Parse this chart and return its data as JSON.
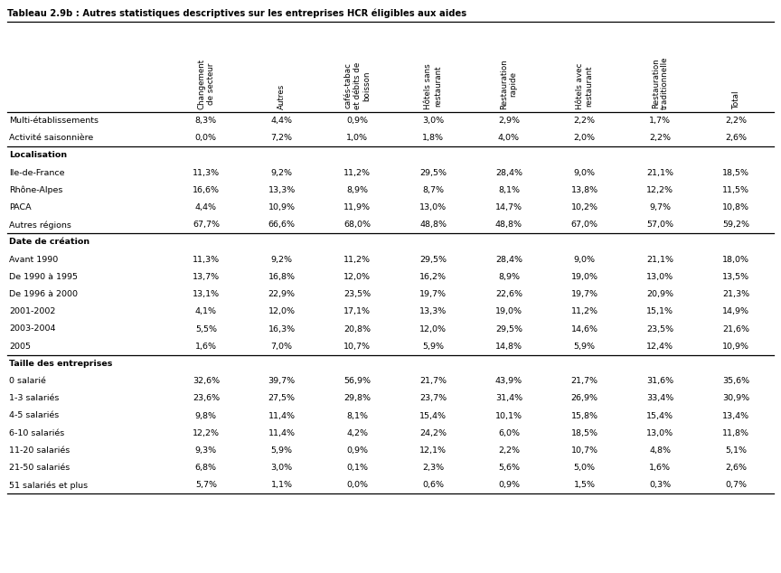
{
  "title": "Tableau 2.9b : Autres statistiques descriptives sur les entreprises HCR éligibles aux aides",
  "col_headers": [
    "Changement\nde secteur",
    "Autres",
    "cafés-tabac\net débits de\nboisson",
    "Hôtels sans\nrestaurant",
    "Restauration\nrapide",
    "Hôtels avec\nrestaurant",
    "Restauration\ntraditionnelle",
    "Total"
  ],
  "rows": [
    {
      "label": "Multi-établissements",
      "values": [
        "8,3%",
        "4,4%",
        "0,9%",
        "3,0%",
        "2,9%",
        "2,2%",
        "1,7%",
        "2,2%"
      ],
      "bold": false,
      "section_start": false
    },
    {
      "label": "Activité saisonnière",
      "values": [
        "0,0%",
        "7,2%",
        "1,0%",
        "1,8%",
        "4,0%",
        "2,0%",
        "2,2%",
        "2,6%"
      ],
      "bold": false,
      "section_start": false
    },
    {
      "label": "Localisation",
      "values": [
        "",
        "",
        "",
        "",
        "",
        "",
        "",
        ""
      ],
      "bold": true,
      "section_start": true
    },
    {
      "label": "Ile-de-France",
      "values": [
        "11,3%",
        "9,2%",
        "11,2%",
        "29,5%",
        "28,4%",
        "9,0%",
        "21,1%",
        "18,5%"
      ],
      "bold": false,
      "section_start": false
    },
    {
      "label": "Rhône-Alpes",
      "values": [
        "16,6%",
        "13,3%",
        "8,9%",
        "8,7%",
        "8,1%",
        "13,8%",
        "12,2%",
        "11,5%"
      ],
      "bold": false,
      "section_start": false
    },
    {
      "label": "PACA",
      "values": [
        "4,4%",
        "10,9%",
        "11,9%",
        "13,0%",
        "14,7%",
        "10,2%",
        "9,7%",
        "10,8%"
      ],
      "bold": false,
      "section_start": false
    },
    {
      "label": "Autres régions",
      "values": [
        "67,7%",
        "66,6%",
        "68,0%",
        "48,8%",
        "48,8%",
        "67,0%",
        "57,0%",
        "59,2%"
      ],
      "bold": false,
      "section_start": false
    },
    {
      "label": "Date de création",
      "values": [
        "",
        "",
        "",
        "",
        "",
        "",
        "",
        ""
      ],
      "bold": true,
      "section_start": true
    },
    {
      "label": "Avant 1990",
      "values": [
        "11,3%",
        "9,2%",
        "11,2%",
        "29,5%",
        "28,4%",
        "9,0%",
        "21,1%",
        "18,0%"
      ],
      "bold": false,
      "section_start": false
    },
    {
      "label": "De 1990 à 1995",
      "values": [
        "13,7%",
        "16,8%",
        "12,0%",
        "16,2%",
        "8,9%",
        "19,0%",
        "13,0%",
        "13,5%"
      ],
      "bold": false,
      "section_start": false
    },
    {
      "label": "De 1996 à 2000",
      "values": [
        "13,1%",
        "22,9%",
        "23,5%",
        "19,7%",
        "22,6%",
        "19,7%",
        "20,9%",
        "21,3%"
      ],
      "bold": false,
      "section_start": false
    },
    {
      "label": "2001-2002",
      "values": [
        "4,1%",
        "12,0%",
        "17,1%",
        "13,3%",
        "19,0%",
        "11,2%",
        "15,1%",
        "14,9%"
      ],
      "bold": false,
      "section_start": false
    },
    {
      "label": "2003-2004",
      "values": [
        "5,5%",
        "16,3%",
        "20,8%",
        "12,0%",
        "29,5%",
        "14,6%",
        "23,5%",
        "21,6%"
      ],
      "bold": false,
      "section_start": false
    },
    {
      "label": "2005",
      "values": [
        "1,6%",
        "7,0%",
        "10,7%",
        "5,9%",
        "14,8%",
        "5,9%",
        "12,4%",
        "10,9%"
      ],
      "bold": false,
      "section_start": false
    },
    {
      "label": "Taille des entreprises",
      "values": [
        "",
        "",
        "",
        "",
        "",
        "",
        "",
        ""
      ],
      "bold": true,
      "section_start": true
    },
    {
      "label": "0 salarié",
      "values": [
        "32,6%",
        "39,7%",
        "56,9%",
        "21,7%",
        "43,9%",
        "21,7%",
        "31,6%",
        "35,6%"
      ],
      "bold": false,
      "section_start": false
    },
    {
      "label": "1-3 salariés",
      "values": [
        "23,6%",
        "27,5%",
        "29,8%",
        "23,7%",
        "31,4%",
        "26,9%",
        "33,4%",
        "30,9%"
      ],
      "bold": false,
      "section_start": false
    },
    {
      "label": "4-5 salariés",
      "values": [
        "9,8%",
        "11,4%",
        "8,1%",
        "15,4%",
        "10,1%",
        "15,8%",
        "15,4%",
        "13,4%"
      ],
      "bold": false,
      "section_start": false
    },
    {
      "label": "6-10 salariés",
      "values": [
        "12,2%",
        "11,4%",
        "4,2%",
        "24,2%",
        "6,0%",
        "18,5%",
        "13,0%",
        "11,8%"
      ],
      "bold": false,
      "section_start": false
    },
    {
      "label": "11-20 salariés",
      "values": [
        "9,3%",
        "5,9%",
        "0,9%",
        "12,1%",
        "2,2%",
        "10,7%",
        "4,8%",
        "5,1%"
      ],
      "bold": false,
      "section_start": false
    },
    {
      "label": "21-50 salariés",
      "values": [
        "6,8%",
        "3,0%",
        "0,1%",
        "2,3%",
        "5,6%",
        "5,0%",
        "1,6%",
        "2,6%"
      ],
      "bold": false,
      "section_start": false
    },
    {
      "label": "51 salariés et plus",
      "values": [
        "5,7%",
        "1,1%",
        "0,0%",
        "0,6%",
        "0,9%",
        "1,5%",
        "0,3%",
        "0,7%"
      ],
      "bold": false,
      "section_start": false
    }
  ],
  "separator_after": [
    1,
    6,
    13
  ],
  "bg_color": "#ffffff",
  "text_color": "#000000"
}
